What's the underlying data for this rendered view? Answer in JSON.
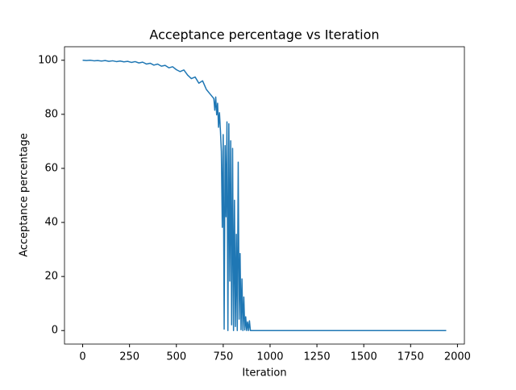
{
  "chart_data": {
    "type": "line",
    "title": "Acceptance percentage vs Iteration",
    "x_label": "Iteration",
    "y_label": "Acceptance percentage",
    "x": [
      0,
      20,
      40,
      60,
      80,
      100,
      120,
      140,
      160,
      180,
      200,
      220,
      240,
      260,
      280,
      300,
      320,
      340,
      360,
      380,
      400,
      420,
      440,
      460,
      480,
      500,
      520,
      540,
      560,
      580,
      600,
      620,
      640,
      660,
      680,
      700,
      705,
      710,
      715,
      720,
      725,
      730,
      735,
      740,
      745,
      750,
      755,
      760,
      765,
      770,
      775,
      780,
      785,
      790,
      795,
      800,
      805,
      810,
      815,
      820,
      825,
      830,
      835,
      840,
      845,
      850,
      855,
      860,
      865,
      870,
      875,
      880,
      885,
      890,
      895,
      900,
      920,
      1940
    ],
    "series": [
      {
        "name": "Acceptance percentage",
        "color": "#1f77b4",
        "values": [
          100,
          99.9,
          100,
          99.8,
          99.9,
          99.7,
          99.9,
          99.6,
          99.8,
          99.5,
          99.7,
          99.4,
          99.6,
          99.2,
          99.5,
          99,
          99.3,
          98.6,
          98.9,
          98.2,
          98.6,
          97.8,
          98.1,
          97.2,
          97.6,
          96.5,
          95.8,
          96.4,
          94.5,
          93.2,
          93.8,
          91.5,
          92.4,
          89.2,
          87.5,
          85.8,
          81.5,
          86.4,
          79.8,
          84.1,
          75.2,
          80.6,
          74.1,
          66.3,
          38.2,
          72.5,
          0.5,
          68.4,
          42.1,
          77.2,
          0,
          76.5,
          18.3,
          70.2,
          2.1,
          67.4,
          0,
          48.2,
          1.5,
          35.6,
          0,
          62.3,
          4.2,
          28.5,
          0.3,
          19.1,
          0,
          12.4,
          0.2,
          5.1,
          0,
          3.2,
          0,
          3.6,
          0,
          0,
          0,
          0
        ]
      }
    ],
    "xlim": [
      -97,
      2037
    ],
    "ylim": [
      -5,
      105
    ],
    "xticks": [
      0,
      250,
      500,
      750,
      1000,
      1250,
      1500,
      1750,
      2000
    ],
    "yticks": [
      0,
      20,
      40,
      60,
      80,
      100
    ]
  }
}
